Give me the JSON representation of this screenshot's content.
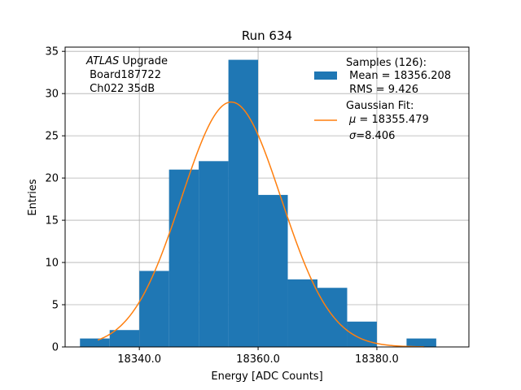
{
  "chart_data": {
    "type": "bar",
    "title": "Run 634",
    "xlabel": "Energy [ADC Counts]",
    "ylabel": "Entries",
    "xlim": [
      18327.5,
      18395.5
    ],
    "ylim": [
      0,
      35.5
    ],
    "grid": true,
    "x_ticks": [
      18340,
      18360,
      18380
    ],
    "x_tick_labels": [
      "18340.0",
      "18360.0",
      "18380.0"
    ],
    "y_ticks": [
      0,
      5,
      10,
      15,
      20,
      25,
      30,
      35
    ],
    "y_tick_labels": [
      "0",
      "5",
      "10",
      "15",
      "20",
      "25",
      "30",
      "35"
    ],
    "bar_color": "#1f77b4",
    "fit_color": "#ff7f0e",
    "bins": [
      {
        "x0": 18330,
        "x1": 18335,
        "count": 1
      },
      {
        "x0": 18335,
        "x1": 18340,
        "count": 2
      },
      {
        "x0": 18340,
        "x1": 18345,
        "count": 9
      },
      {
        "x0": 18345,
        "x1": 18350,
        "count": 21
      },
      {
        "x0": 18350,
        "x1": 18355,
        "count": 22
      },
      {
        "x0": 18355,
        "x1": 18360,
        "count": 34
      },
      {
        "x0": 18360,
        "x1": 18365,
        "count": 18
      },
      {
        "x0": 18365,
        "x1": 18370,
        "count": 8
      },
      {
        "x0": 18370,
        "x1": 18375,
        "count": 7
      },
      {
        "x0": 18375,
        "x1": 18380,
        "count": 3
      },
      {
        "x0": 18380,
        "x1": 18385,
        "count": 0
      },
      {
        "x0": 18385,
        "x1": 18390,
        "count": 1
      }
    ],
    "fit": {
      "mu": 18355.479,
      "sigma": 8.406,
      "amplitude": 29.0,
      "x_range": [
        18333,
        18388
      ]
    },
    "annotation": {
      "italic_part": "ATLAS",
      "rest_part": " Upgrade",
      "line2": " Board187722",
      "line3": " Ch022 35dB"
    },
    "legend": {
      "position": "upper right",
      "samples": {
        "line1": "Samples (126):",
        "line2": " Mean = 18356.208",
        "line3": " RMS = 9.426"
      },
      "fit": {
        "line1": "Gaussian Fit:",
        "mu_symbol": "μ",
        "mu_text": " = 18355.479",
        "sigma_symbol": "σ",
        "sigma_text": "=8.406"
      }
    }
  }
}
